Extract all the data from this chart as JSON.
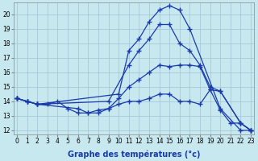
{
  "xlabel": "Graphe des températures (°c)",
  "background_color": "#c8e8f0",
  "grid_color": "#a0c4d4",
  "line_color": "#1a3aaa",
  "xlim": [
    -0.3,
    23.3
  ],
  "ylim": [
    11.7,
    20.8
  ],
  "xticks": [
    0,
    1,
    2,
    3,
    4,
    5,
    6,
    7,
    8,
    9,
    10,
    11,
    12,
    13,
    14,
    15,
    16,
    17,
    18,
    19,
    20,
    21,
    22,
    23
  ],
  "yticks": [
    12,
    13,
    14,
    15,
    16,
    17,
    18,
    19,
    20
  ],
  "series": [
    {
      "x": [
        0,
        1,
        2,
        10,
        11,
        12,
        13,
        14,
        15,
        16,
        17,
        20,
        22,
        23
      ],
      "y": [
        14.2,
        14.0,
        13.8,
        14.5,
        17.5,
        18.3,
        19.5,
        20.3,
        20.6,
        20.3,
        19.0,
        13.5,
        12.0,
        12.0
      ]
    },
    {
      "x": [
        0,
        1,
        2,
        9,
        11,
        12,
        13,
        14,
        15,
        16,
        17,
        18,
        19,
        20,
        22,
        23
      ],
      "y": [
        14.2,
        14.0,
        13.8,
        14.0,
        16.5,
        17.5,
        18.3,
        19.3,
        19.3,
        18.0,
        17.5,
        16.5,
        15.0,
        14.7,
        12.5,
        12.0
      ]
    },
    {
      "x": [
        0,
        1,
        2,
        6,
        7,
        8,
        9,
        10,
        11,
        12,
        13,
        14,
        15,
        16,
        17,
        18,
        19,
        20,
        22,
        23
      ],
      "y": [
        14.2,
        14.0,
        13.8,
        13.5,
        13.2,
        13.2,
        13.5,
        14.2,
        15.0,
        15.5,
        16.0,
        16.5,
        16.4,
        16.5,
        16.5,
        16.4,
        14.8,
        14.7,
        12.5,
        12.0
      ]
    },
    {
      "x": [
        0,
        1,
        2,
        3,
        4,
        5,
        6,
        7,
        8,
        9,
        10,
        11,
        12,
        13,
        14,
        15,
        16,
        17,
        18,
        19,
        20,
        21,
        22,
        23
      ],
      "y": [
        14.2,
        14.0,
        13.8,
        13.8,
        14.0,
        13.5,
        13.2,
        13.2,
        13.4,
        13.5,
        13.8,
        14.0,
        14.0,
        14.2,
        14.5,
        14.5,
        14.0,
        14.0,
        13.8,
        14.8,
        13.4,
        12.5,
        12.5,
        12.0
      ]
    }
  ],
  "marker": "+",
  "markersize": 4,
  "linewidth": 0.9,
  "tick_fontsize": 5.5,
  "xlabel_fontsize": 7,
  "xlabel_fontweight": "bold"
}
